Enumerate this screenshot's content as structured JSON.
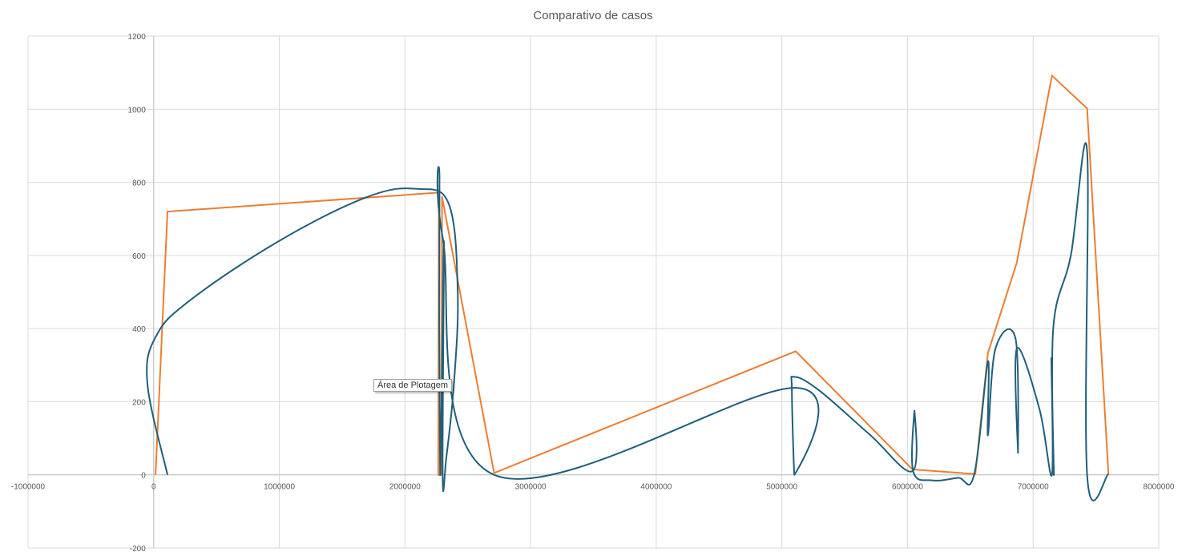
{
  "chart_data": {
    "type": "scatter",
    "title": "Comparativo de casos",
    "xlabel": "",
    "ylabel": "",
    "xlim": [
      -1000000,
      8000000
    ],
    "ylim": [
      -200,
      1200
    ],
    "x_ticks": [
      -1000000,
      0,
      1000000,
      2000000,
      3000000,
      4000000,
      5000000,
      6000000,
      7000000,
      8000000
    ],
    "y_ticks": [
      -200,
      0,
      200,
      400,
      600,
      800,
      1000,
      1200
    ],
    "grid": true,
    "legend": "none",
    "series": [
      {
        "color": "#ed7d31",
        "style": "straight",
        "points": [
          [
            15000,
            0
          ],
          [
            110000,
            720
          ],
          [
            2270000,
            772
          ],
          [
            2265000,
            0
          ],
          [
            2290000,
            0
          ],
          [
            2295000,
            760
          ],
          [
            2710000,
            5
          ],
          [
            5110000,
            338
          ],
          [
            6040000,
            15
          ],
          [
            6540000,
            2
          ],
          [
            6640000,
            333
          ],
          [
            6870000,
            580
          ],
          [
            7150000,
            1092
          ],
          [
            7430000,
            1002
          ],
          [
            7600000,
            0
          ]
        ]
      },
      {
        "color": "#1f5f7a",
        "style": "smooth",
        "points": [
          [
            110000,
            0
          ],
          [
            -50000,
            250
          ],
          [
            20000,
            380
          ],
          [
            300000,
            480
          ],
          [
            1000000,
            640
          ],
          [
            1700000,
            760
          ],
          [
            2100000,
            782
          ],
          [
            2350000,
            740
          ],
          [
            2420000,
            500
          ],
          [
            2390000,
            250
          ],
          [
            2330000,
            50
          ],
          [
            2300000,
            0
          ],
          [
            2310000,
            640
          ],
          [
            2280000,
            0
          ],
          [
            2275000,
            795
          ],
          [
            2300000,
            650
          ],
          [
            2710000,
            0
          ],
          [
            5100000,
            238
          ],
          [
            5100000,
            0
          ],
          [
            5080000,
            230
          ],
          [
            5100000,
            268
          ],
          [
            5300000,
            230
          ],
          [
            5700000,
            110
          ],
          [
            6040000,
            10
          ],
          [
            6055000,
            175
          ],
          [
            6045000,
            10
          ],
          [
            6200000,
            -15
          ],
          [
            6400000,
            -8
          ],
          [
            6530000,
            0
          ],
          [
            6640000,
            310
          ],
          [
            6640000,
            108
          ],
          [
            6700000,
            345
          ],
          [
            6860000,
            372
          ],
          [
            6880000,
            60
          ],
          [
            6870000,
            345
          ],
          [
            7050000,
            180
          ],
          [
            7150000,
            0
          ],
          [
            7145000,
            320
          ],
          [
            7165000,
            0
          ],
          [
            7160000,
            400
          ],
          [
            7300000,
            600
          ],
          [
            7430000,
            885
          ],
          [
            7430000,
            0
          ],
          [
            7600000,
            2
          ]
        ]
      }
    ]
  },
  "tooltip": {
    "text": "Área de Plotagem"
  }
}
